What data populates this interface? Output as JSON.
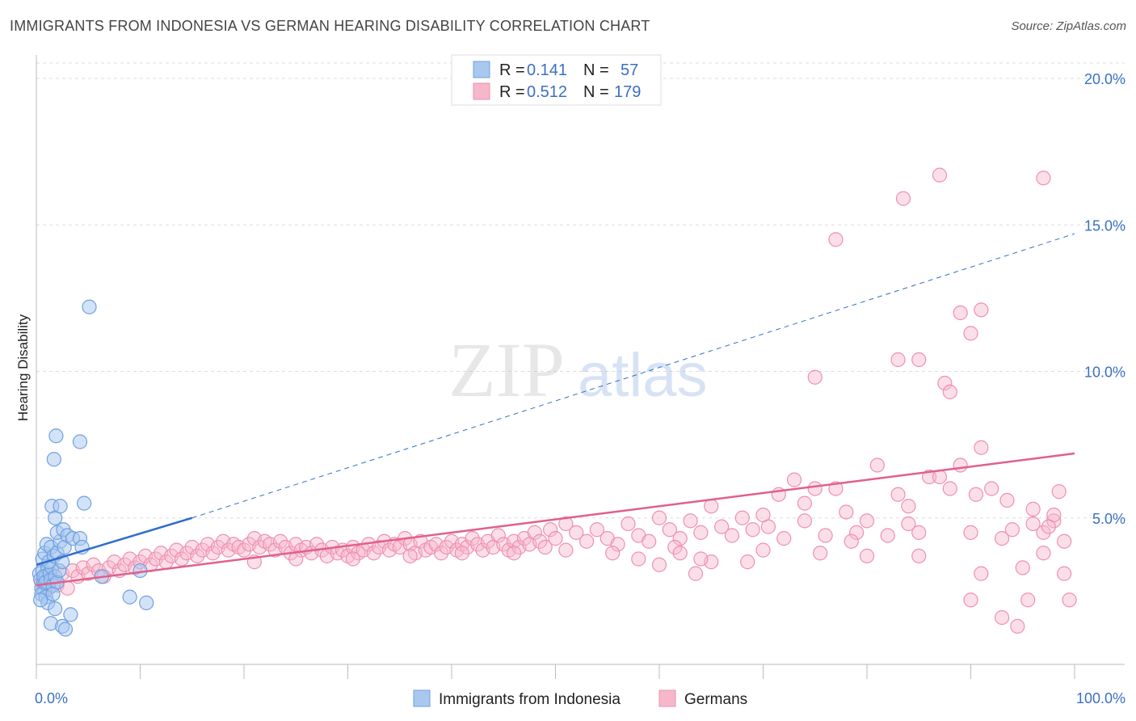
{
  "title": "IMMIGRANTS FROM INDONESIA VS GERMAN HEARING DISABILITY CORRELATION CHART",
  "source": "Source: ZipAtlas.com",
  "watermark": {
    "zip": "ZIP",
    "atlas": "atlas"
  },
  "colors": {
    "blue_fill": "#a8c8f0",
    "blue_stroke": "#6f9fe0",
    "blue_line": "#2f6fcf",
    "pink_fill": "#f7b7cb",
    "pink_stroke": "#ee8fae",
    "pink_line": "#e0608a",
    "tick_text": "#3b6fc4",
    "grid": "#dddddd"
  },
  "legend": {
    "r_label": "R =",
    "n_label": "N =",
    "rows": [
      {
        "r": "0.141",
        "n": "57"
      },
      {
        "r": "0.512",
        "n": "179"
      }
    ]
  },
  "chart_data": {
    "type": "scatter",
    "xlabel": "",
    "ylabel": "Hearing Disability",
    "xlim": [
      0,
      100
    ],
    "ylim": [
      0,
      20
    ],
    "x_tick_labels": [
      "0.0%",
      "100.0%"
    ],
    "y_ticks": [
      5,
      10,
      15,
      20
    ],
    "y_tick_labels": [
      "5.0%",
      "10.0%",
      "15.0%",
      "20.0%"
    ],
    "grid": "horizontal dashed",
    "series": [
      {
        "name": "Immigrants from Indonesia",
        "trend": {
          "x": [
            0,
            15
          ],
          "y": [
            3.4,
            5.0
          ],
          "extended": {
            "x": [
              15,
              100
            ],
            "y": [
              5.0,
              14.7
            ]
          }
        },
        "points": [
          [
            0.3,
            3.1
          ],
          [
            0.4,
            2.9
          ],
          [
            0.5,
            2.6
          ],
          [
            0.6,
            3.2
          ],
          [
            0.7,
            2.8
          ],
          [
            0.8,
            2.5
          ],
          [
            0.9,
            3.0
          ],
          [
            1.0,
            2.7
          ],
          [
            1.1,
            3.3
          ],
          [
            1.2,
            2.6
          ],
          [
            0.5,
            2.4
          ],
          [
            0.7,
            3.0
          ],
          [
            0.9,
            2.8
          ],
          [
            1.3,
            3.1
          ],
          [
            1.4,
            2.9
          ],
          [
            1.5,
            3.3
          ],
          [
            1.6,
            2.7
          ],
          [
            1.8,
            3.0
          ],
          [
            2.0,
            2.8
          ],
          [
            2.2,
            3.2
          ],
          [
            0.6,
            3.6
          ],
          [
            0.8,
            3.8
          ],
          [
            1.0,
            4.1
          ],
          [
            1.2,
            3.5
          ],
          [
            1.4,
            4.0
          ],
          [
            1.7,
            3.7
          ],
          [
            2.0,
            3.8
          ],
          [
            2.3,
            4.2
          ],
          [
            2.5,
            3.5
          ],
          [
            2.7,
            4.0
          ],
          [
            1.5,
            5.4
          ],
          [
            1.8,
            5.0
          ],
          [
            2.0,
            4.5
          ],
          [
            2.3,
            5.4
          ],
          [
            2.6,
            4.6
          ],
          [
            3.0,
            4.4
          ],
          [
            3.5,
            4.3
          ],
          [
            4.2,
            4.3
          ],
          [
            4.4,
            4.0
          ],
          [
            4.6,
            5.5
          ],
          [
            1.7,
            7.0
          ],
          [
            1.9,
            7.8
          ],
          [
            4.2,
            7.6
          ],
          [
            5.1,
            12.2
          ],
          [
            0.9,
            2.3
          ],
          [
            1.1,
            2.1
          ],
          [
            1.4,
            1.4
          ],
          [
            1.8,
            1.9
          ],
          [
            2.5,
            1.3
          ],
          [
            2.8,
            1.2
          ],
          [
            3.3,
            1.7
          ],
          [
            6.3,
            3.0
          ],
          [
            9.0,
            2.3
          ],
          [
            10.0,
            3.2
          ],
          [
            10.6,
            2.1
          ],
          [
            0.4,
            2.2
          ],
          [
            1.6,
            2.4
          ]
        ]
      },
      {
        "name": "Germans",
        "trend": {
          "x": [
            0,
            100
          ],
          "y": [
            2.7,
            7.2
          ]
        },
        "points": [
          [
            0.5,
            2.8
          ],
          [
            1.0,
            3.0
          ],
          [
            1.5,
            2.9
          ],
          [
            2.0,
            2.7
          ],
          [
            2.5,
            3.1
          ],
          [
            3.0,
            2.6
          ],
          [
            3.5,
            3.2
          ],
          [
            4.0,
            3.0
          ],
          [
            4.5,
            3.3
          ],
          [
            5.0,
            3.1
          ],
          [
            5.5,
            3.4
          ],
          [
            6.0,
            3.2
          ],
          [
            6.5,
            3.0
          ],
          [
            7.0,
            3.3
          ],
          [
            7.5,
            3.5
          ],
          [
            8.0,
            3.2
          ],
          [
            8.5,
            3.4
          ],
          [
            9.0,
            3.6
          ],
          [
            9.5,
            3.3
          ],
          [
            10.0,
            3.5
          ],
          [
            10.5,
            3.7
          ],
          [
            11.0,
            3.4
          ],
          [
            11.5,
            3.6
          ],
          [
            12.0,
            3.8
          ],
          [
            12.5,
            3.5
          ],
          [
            13.0,
            3.7
          ],
          [
            13.5,
            3.9
          ],
          [
            14.0,
            3.6
          ],
          [
            14.5,
            3.8
          ],
          [
            15.0,
            4.0
          ],
          [
            15.5,
            3.7
          ],
          [
            16.0,
            3.9
          ],
          [
            16.5,
            4.1
          ],
          [
            17.0,
            3.8
          ],
          [
            17.5,
            4.0
          ],
          [
            18.0,
            4.2
          ],
          [
            18.5,
            3.9
          ],
          [
            19.0,
            4.1
          ],
          [
            19.5,
            4.0
          ],
          [
            20.0,
            3.9
          ],
          [
            20.5,
            4.1
          ],
          [
            21.0,
            4.3
          ],
          [
            21.5,
            4.0
          ],
          [
            22.0,
            4.2
          ],
          [
            22.5,
            4.1
          ],
          [
            23.0,
            3.9
          ],
          [
            23.5,
            4.2
          ],
          [
            24.0,
            4.0
          ],
          [
            24.5,
            3.8
          ],
          [
            25.0,
            4.1
          ],
          [
            25.5,
            3.9
          ],
          [
            26.0,
            4.0
          ],
          [
            26.5,
            3.8
          ],
          [
            27.0,
            4.1
          ],
          [
            27.5,
            3.9
          ],
          [
            28.0,
            3.7
          ],
          [
            28.5,
            4.0
          ],
          [
            29.0,
            3.8
          ],
          [
            29.5,
            3.9
          ],
          [
            30.0,
            3.7
          ],
          [
            30.5,
            4.0
          ],
          [
            31.0,
            3.8
          ],
          [
            31.5,
            3.9
          ],
          [
            32.0,
            4.1
          ],
          [
            32.5,
            3.8
          ],
          [
            33.0,
            4.0
          ],
          [
            33.5,
            4.2
          ],
          [
            34.0,
            3.9
          ],
          [
            34.5,
            4.1
          ],
          [
            35.0,
            4.0
          ],
          [
            35.5,
            4.3
          ],
          [
            36.0,
            4.1
          ],
          [
            36.5,
            3.8
          ],
          [
            37.0,
            4.2
          ],
          [
            37.5,
            3.9
          ],
          [
            38.0,
            4.0
          ],
          [
            38.5,
            4.1
          ],
          [
            39.0,
            3.8
          ],
          [
            39.5,
            4.0
          ],
          [
            40.0,
            4.2
          ],
          [
            40.5,
            3.9
          ],
          [
            41.0,
            4.1
          ],
          [
            41.5,
            4.0
          ],
          [
            42.0,
            4.3
          ],
          [
            42.5,
            4.1
          ],
          [
            43.0,
            3.9
          ],
          [
            43.5,
            4.2
          ],
          [
            44.0,
            4.0
          ],
          [
            44.5,
            4.4
          ],
          [
            45.0,
            4.1
          ],
          [
            45.5,
            3.9
          ],
          [
            46.0,
            4.2
          ],
          [
            46.5,
            4.0
          ],
          [
            47.0,
            4.3
          ],
          [
            47.5,
            4.1
          ],
          [
            48.0,
            4.5
          ],
          [
            48.5,
            4.2
          ],
          [
            49.0,
            4.0
          ],
          [
            49.5,
            4.6
          ],
          [
            50.0,
            4.3
          ],
          [
            51.0,
            4.8
          ],
          [
            52.0,
            4.5
          ],
          [
            53.0,
            4.2
          ],
          [
            54.0,
            4.6
          ],
          [
            55.0,
            4.3
          ],
          [
            56.0,
            4.1
          ],
          [
            57.0,
            4.8
          ],
          [
            58.0,
            4.4
          ],
          [
            59.0,
            4.2
          ],
          [
            60.0,
            5.0
          ],
          [
            61.0,
            4.6
          ],
          [
            62.0,
            4.3
          ],
          [
            63.0,
            4.9
          ],
          [
            64.0,
            4.5
          ],
          [
            65.0,
            5.4
          ],
          [
            66.0,
            4.7
          ],
          [
            67.0,
            4.4
          ],
          [
            68.0,
            5.0
          ],
          [
            69.0,
            4.6
          ],
          [
            70.0,
            5.1
          ],
          [
            70.5,
            4.7
          ],
          [
            71.5,
            5.8
          ],
          [
            72.0,
            4.3
          ],
          [
            73.0,
            6.3
          ],
          [
            74.0,
            5.5
          ],
          [
            75.0,
            6.0
          ],
          [
            76.0,
            4.4
          ],
          [
            77.0,
            6.0
          ],
          [
            78.0,
            5.2
          ],
          [
            79.0,
            4.5
          ],
          [
            80.0,
            4.9
          ],
          [
            81.0,
            6.8
          ],
          [
            82.0,
            4.4
          ],
          [
            83.0,
            5.8
          ],
          [
            84.0,
            5.4
          ],
          [
            85.0,
            4.5
          ],
          [
            86.0,
            6.4
          ],
          [
            87.0,
            6.4
          ],
          [
            88.0,
            6.0
          ],
          [
            89.0,
            6.8
          ],
          [
            90.0,
            4.5
          ],
          [
            91.0,
            7.4
          ],
          [
            92.0,
            6.0
          ],
          [
            93.0,
            4.3
          ],
          [
            94.0,
            4.6
          ],
          [
            95.0,
            3.3
          ],
          [
            96.0,
            4.8
          ],
          [
            97.0,
            4.5
          ],
          [
            98.0,
            4.9
          ],
          [
            99.0,
            3.1
          ],
          [
            21.0,
            3.5
          ],
          [
            25.0,
            3.6
          ],
          [
            30.5,
            3.6
          ],
          [
            36.0,
            3.7
          ],
          [
            41.0,
            3.8
          ],
          [
            46.0,
            3.8
          ],
          [
            51.0,
            3.9
          ],
          [
            55.5,
            3.8
          ],
          [
            60.0,
            3.4
          ],
          [
            63.5,
            3.1
          ],
          [
            65.0,
            3.5
          ],
          [
            68.5,
            3.5
          ],
          [
            70.0,
            3.9
          ],
          [
            75.5,
            3.8
          ],
          [
            85.0,
            3.7
          ],
          [
            61.5,
            4.0
          ],
          [
            74.0,
            4.9
          ],
          [
            78.5,
            4.2
          ],
          [
            80.0,
            3.7
          ],
          [
            90.5,
            5.8
          ],
          [
            96.0,
            5.3
          ],
          [
            97.0,
            3.8
          ],
          [
            98.0,
            5.1
          ],
          [
            99.5,
            2.2
          ],
          [
            90.0,
            2.2
          ],
          [
            94.5,
            1.3
          ],
          [
            93.0,
            1.6
          ],
          [
            95.5,
            2.2
          ],
          [
            91.0,
            3.1
          ],
          [
            93.5,
            5.6
          ],
          [
            75.0,
            9.8
          ],
          [
            83.0,
            10.4
          ],
          [
            85.0,
            10.4
          ],
          [
            87.5,
            9.6
          ],
          [
            88.0,
            9.3
          ],
          [
            89.0,
            12.0
          ],
          [
            90.0,
            11.3
          ],
          [
            91.0,
            12.1
          ],
          [
            77.0,
            14.5
          ],
          [
            83.5,
            15.9
          ],
          [
            87.0,
            16.7
          ],
          [
            97.0,
            16.6
          ],
          [
            97.5,
            4.7
          ],
          [
            98.5,
            5.9
          ],
          [
            99.0,
            4.2
          ],
          [
            84.0,
            4.8
          ],
          [
            64.0,
            3.6
          ],
          [
            62.0,
            3.8
          ],
          [
            58.0,
            3.6
          ]
        ]
      }
    ]
  },
  "bottom_legend": [
    "Immigrants from Indonesia",
    "Germans"
  ]
}
